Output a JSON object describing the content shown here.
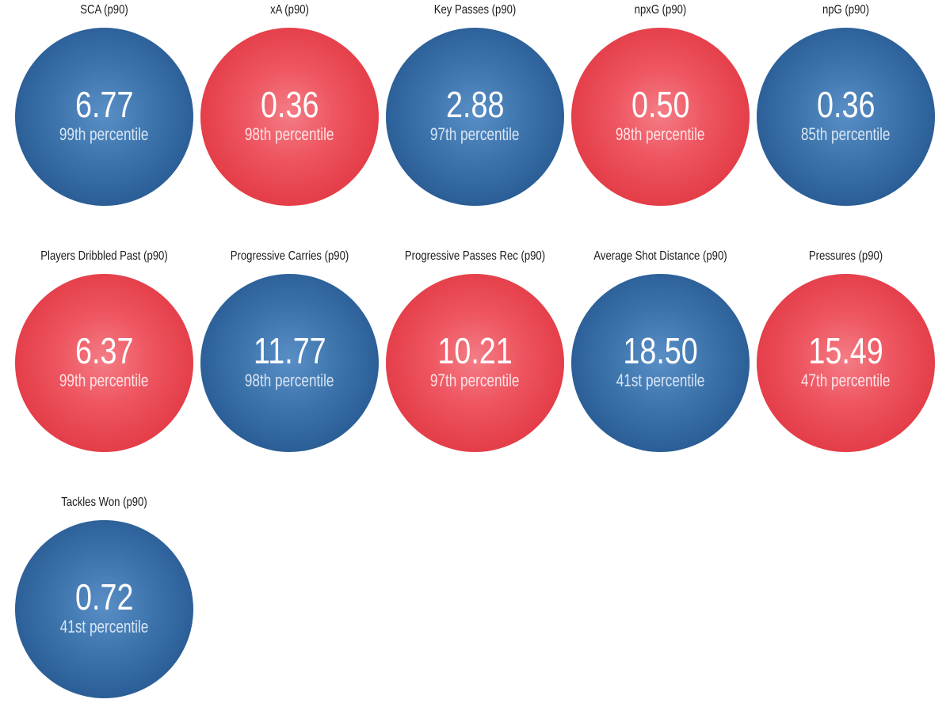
{
  "chart_data": {
    "type": "bubble-grid",
    "colors": {
      "blue": "#2c5f97",
      "red": "#e43e49"
    },
    "items": [
      {
        "label": "SCA (p90)",
        "value": "6.77",
        "percentile": "99th percentile",
        "color": "blue"
      },
      {
        "label": "xA (p90)",
        "value": "0.36",
        "percentile": "98th percentile",
        "color": "red"
      },
      {
        "label": "Key Passes (p90)",
        "value": "2.88",
        "percentile": "97th percentile",
        "color": "blue"
      },
      {
        "label": "npxG (p90)",
        "value": "0.50",
        "percentile": "98th percentile",
        "color": "red"
      },
      {
        "label": "npG (p90)",
        "value": "0.36",
        "percentile": "85th percentile",
        "color": "blue"
      },
      {
        "label": "Players Dribbled Past (p90)",
        "value": "6.37",
        "percentile": "99th percentile",
        "color": "red"
      },
      {
        "label": "Progressive Carries (p90)",
        "value": "11.77",
        "percentile": "98th percentile",
        "color": "blue"
      },
      {
        "label": "Progressive Passes Rec (p90)",
        "value": "10.21",
        "percentile": "97th percentile",
        "color": "red"
      },
      {
        "label": "Average Shot Distance (p90)",
        "value": "18.50",
        "percentile": "41st percentile",
        "color": "blue"
      },
      {
        "label": "Pressures (p90)",
        "value": "15.49",
        "percentile": "47th percentile",
        "color": "red"
      },
      {
        "label": "Tackles Won (p90)",
        "value": "0.72",
        "percentile": "41st percentile",
        "color": "blue"
      }
    ]
  }
}
